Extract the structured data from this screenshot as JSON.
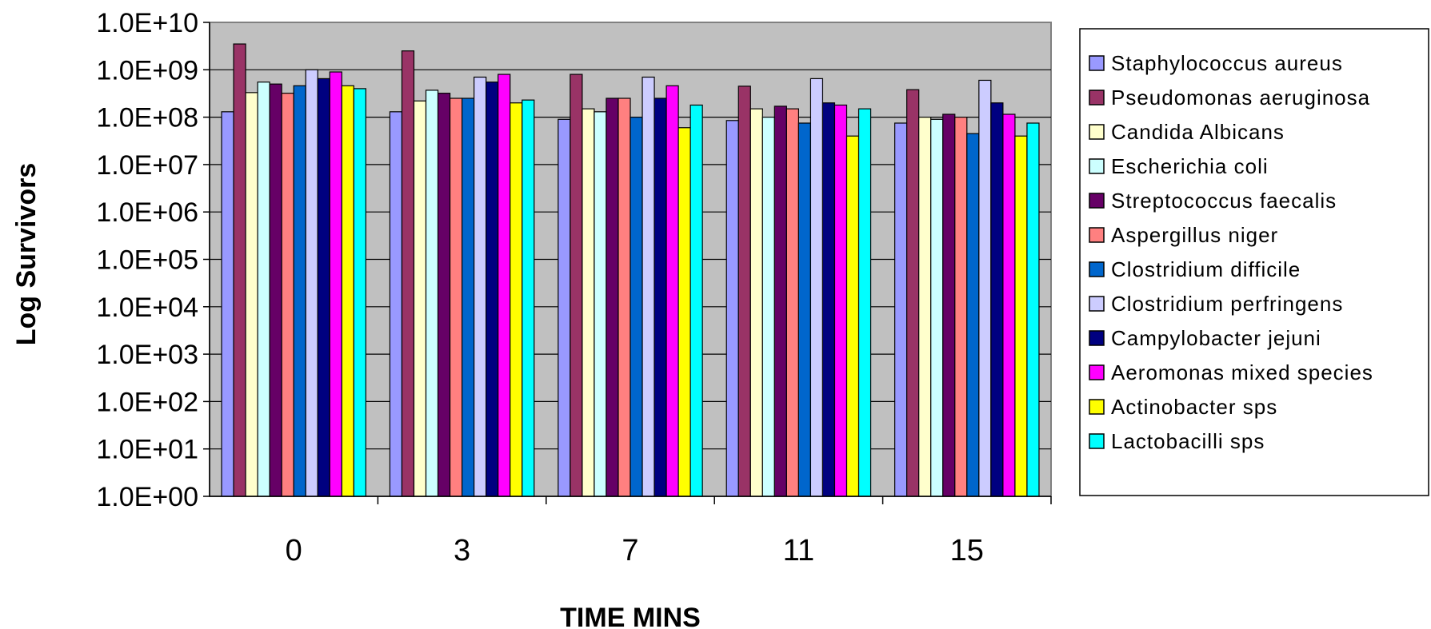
{
  "chart_data": {
    "type": "bar",
    "title": "",
    "xlabel": "TIME MINS",
    "ylabel": "Log Survivors",
    "y_scale": "log",
    "ylim": [
      1,
      10000000000
    ],
    "y_ticks": [
      1,
      10,
      100,
      1000,
      10000,
      100000,
      1000000,
      10000000,
      100000000,
      1000000000,
      10000000000
    ],
    "y_tick_labels": [
      "1.0E+00",
      "1.0E+01",
      "1.0E+02",
      "1.0E+03",
      "1.0E+04",
      "1.0E+05",
      "1.0E+06",
      "1.0E+07",
      "1.0E+08",
      "1.0E+09",
      "1.0E+10"
    ],
    "grid": true,
    "legend_position": "right",
    "plot_background": "#c0c0c0",
    "categories": [
      "0",
      "3",
      "7",
      "11",
      "15"
    ],
    "series": [
      {
        "name": "Staphylococcus aureus",
        "color": "#9999ff",
        "values": [
          130000000,
          130000000,
          90000000,
          85000000,
          75000000
        ]
      },
      {
        "name": "Pseudomonas aeruginosa",
        "color": "#993366",
        "values": [
          3500000000,
          2500000000,
          800000000,
          450000000,
          380000000
        ]
      },
      {
        "name": "Candida Albicans",
        "color": "#ffffcc",
        "values": [
          330000000,
          220000000,
          150000000,
          150000000,
          100000000
        ]
      },
      {
        "name": "Escherichia coli",
        "color": "#ccffff",
        "values": [
          550000000,
          370000000,
          130000000,
          100000000,
          90000000
        ]
      },
      {
        "name": "Streptococcus  faecalis",
        "color": "#660066",
        "values": [
          500000000,
          320000000,
          250000000,
          170000000,
          115000000
        ]
      },
      {
        "name": "Aspergillus niger",
        "color": "#ff8080",
        "values": [
          320000000,
          250000000,
          250000000,
          150000000,
          100000000
        ]
      },
      {
        "name": "Clostridium  difficile",
        "color": "#0066cc",
        "values": [
          460000000,
          250000000,
          100000000,
          75000000,
          45000000
        ]
      },
      {
        "name": "Clostridium  perfringens",
        "color": "#ccccff",
        "values": [
          1000000000,
          700000000,
          700000000,
          650000000,
          600000000
        ]
      },
      {
        "name": "Campylobacter jejuni",
        "color": "#000080",
        "values": [
          650000000,
          550000000,
          250000000,
          200000000,
          200000000
        ]
      },
      {
        "name": "Aeromonas mixed species",
        "color": "#ff00ff",
        "values": [
          900000000,
          800000000,
          460000000,
          180000000,
          115000000
        ]
      },
      {
        "name": "Actinobacter sps",
        "color": "#ffff00",
        "values": [
          460000000,
          200000000,
          60000000,
          40000000,
          40000000
        ]
      },
      {
        "name": "Lactobacilli sps",
        "color": "#00ffff",
        "values": [
          400000000,
          230000000,
          180000000,
          150000000,
          75000000
        ]
      }
    ]
  }
}
